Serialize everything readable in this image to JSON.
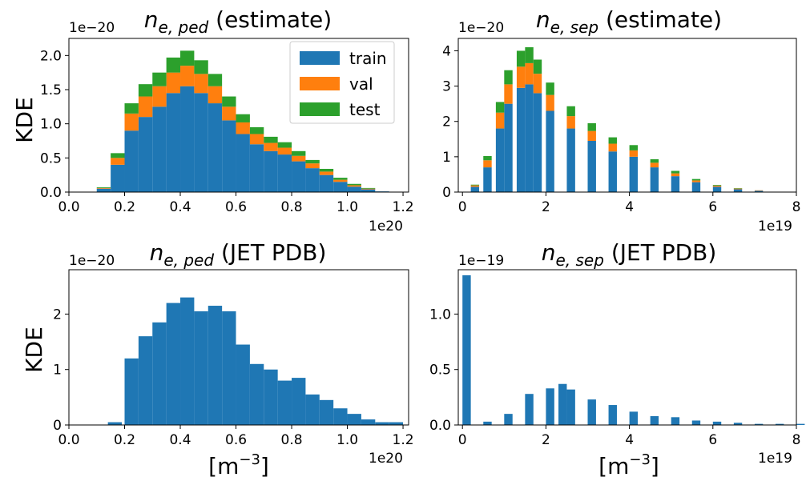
{
  "colors": {
    "train": "#1f77b4",
    "val": "#ff7f0e",
    "test": "#2ca02c"
  },
  "ylabel": "KDE",
  "xlabel": {
    "main": "[m",
    "sup": "−3",
    "close": "]"
  },
  "chart_data": [
    {
      "type": "bar",
      "stacked": true,
      "title": {
        "sym": "n",
        "sub": "e, ped",
        "suffix": " (estimate)"
      },
      "ylabel": "KDE",
      "x_offset": "1e20",
      "y_offset": "1e−20",
      "xlim": [
        0,
        1.22
      ],
      "ylim": [
        0,
        2.25
      ],
      "xticks": [
        0.0,
        0.2,
        0.4,
        0.6,
        0.8,
        1.0,
        1.2
      ],
      "xtick_labels": [
        "0.0",
        "0.2",
        "0.4",
        "0.6",
        "0.8",
        "1.0",
        "1.2"
      ],
      "yticks": [
        0.0,
        0.5,
        1.0,
        1.5,
        2.0
      ],
      "ytick_labels": [
        "0.0",
        "0.5",
        "1.0",
        "1.5",
        "2.0"
      ],
      "legend": {
        "position": "upper right",
        "entries": [
          "train",
          "val",
          "test"
        ]
      },
      "series": [
        {
          "name": "train",
          "x": [
            0.0,
            0.1,
            0.15,
            0.2,
            0.25,
            0.3,
            0.35,
            0.4,
            0.45,
            0.5,
            0.55,
            0.6,
            0.65,
            0.7,
            0.75,
            0.8,
            0.85,
            0.9,
            0.95,
            1.0,
            1.05,
            1.1,
            1.15
          ],
          "y": [
            0.0,
            0.05,
            0.4,
            0.9,
            1.1,
            1.25,
            1.45,
            1.55,
            1.45,
            1.3,
            1.05,
            0.85,
            0.7,
            0.6,
            0.55,
            0.45,
            0.35,
            0.25,
            0.15,
            0.08,
            0.04,
            0.01,
            0.0
          ]
        },
        {
          "name": "val",
          "x": [
            0.0,
            0.1,
            0.15,
            0.2,
            0.25,
            0.3,
            0.35,
            0.4,
            0.45,
            0.5,
            0.55,
            0.6,
            0.65,
            0.7,
            0.75,
            0.8,
            0.85,
            0.9,
            0.95,
            1.0,
            1.05,
            1.1,
            1.15
          ],
          "y": [
            0.0,
            0.01,
            0.1,
            0.25,
            0.3,
            0.3,
            0.3,
            0.3,
            0.28,
            0.25,
            0.2,
            0.17,
            0.15,
            0.12,
            0.1,
            0.08,
            0.07,
            0.05,
            0.03,
            0.02,
            0.01,
            0.0,
            0.0
          ]
        },
        {
          "name": "test",
          "x": [
            0.0,
            0.1,
            0.15,
            0.2,
            0.25,
            0.3,
            0.35,
            0.4,
            0.45,
            0.5,
            0.55,
            0.6,
            0.65,
            0.7,
            0.75,
            0.8,
            0.85,
            0.9,
            0.95,
            1.0,
            1.05,
            1.1,
            1.15
          ],
          "y": [
            0.0,
            0.01,
            0.07,
            0.15,
            0.18,
            0.2,
            0.22,
            0.22,
            0.2,
            0.18,
            0.15,
            0.12,
            0.1,
            0.09,
            0.08,
            0.07,
            0.05,
            0.04,
            0.03,
            0.02,
            0.01,
            0.0,
            0.0
          ]
        }
      ]
    },
    {
      "type": "bar",
      "stacked": true,
      "title": {
        "sym": "n",
        "sub": "e, sep",
        "suffix": " (estimate)"
      },
      "x_offset": "1e19",
      "y_offset": "1e−20",
      "xlim": [
        -0.1,
        8.0
      ],
      "ylim": [
        0,
        4.35
      ],
      "xticks": [
        0,
        2,
        4,
        6,
        8
      ],
      "xtick_labels": [
        "0",
        "2",
        "4",
        "6",
        "8"
      ],
      "yticks": [
        0,
        1,
        2,
        3,
        4
      ],
      "ytick_labels": [
        "0",
        "1",
        "2",
        "3",
        "4"
      ],
      "series": [
        {
          "name": "train",
          "x": [
            0.0,
            0.2,
            0.5,
            0.8,
            1.0,
            1.3,
            1.5,
            1.7,
            2.0,
            2.5,
            3.0,
            3.5,
            4.0,
            4.5,
            5.0,
            5.5,
            6.0,
            6.5,
            7.0,
            7.5,
            7.8
          ],
          "y": [
            0.0,
            0.15,
            0.7,
            1.8,
            2.5,
            2.95,
            3.05,
            2.8,
            2.3,
            1.8,
            1.45,
            1.15,
            1.0,
            0.7,
            0.45,
            0.28,
            0.15,
            0.08,
            0.04,
            0.01,
            0.0
          ]
        },
        {
          "name": "val",
          "x": [
            0.0,
            0.2,
            0.5,
            0.8,
            1.0,
            1.3,
            1.5,
            1.7,
            2.0,
            2.5,
            3.0,
            3.5,
            4.0,
            4.5,
            5.0,
            5.5,
            6.0,
            6.5,
            7.0,
            7.5,
            7.8
          ],
          "y": [
            0.0,
            0.04,
            0.2,
            0.45,
            0.55,
            0.6,
            0.6,
            0.55,
            0.45,
            0.35,
            0.28,
            0.22,
            0.18,
            0.13,
            0.08,
            0.05,
            0.03,
            0.02,
            0.01,
            0.0,
            0.0
          ]
        },
        {
          "name": "test",
          "x": [
            0.0,
            0.2,
            0.5,
            0.8,
            1.0,
            1.3,
            1.5,
            1.7,
            2.0,
            2.5,
            3.0,
            3.5,
            4.0,
            4.5,
            5.0,
            5.5,
            6.0,
            6.5,
            7.0,
            7.5,
            7.8
          ],
          "y": [
            0.0,
            0.02,
            0.12,
            0.3,
            0.4,
            0.45,
            0.45,
            0.4,
            0.35,
            0.28,
            0.22,
            0.18,
            0.15,
            0.1,
            0.07,
            0.04,
            0.02,
            0.01,
            0.0,
            0.0,
            0.0
          ]
        }
      ]
    },
    {
      "type": "bar",
      "title": {
        "sym": "n",
        "sub": "e, ped",
        "suffix": " (JET PDB)"
      },
      "x_offset": "1e20",
      "y_offset": "1e−20",
      "xlim": [
        0,
        1.22
      ],
      "ylim": [
        0,
        2.8
      ],
      "xticks": [
        0.0,
        0.2,
        0.4,
        0.6,
        0.8,
        1.0,
        1.2
      ],
      "xtick_labels": [
        "0.0",
        "0.2",
        "0.4",
        "0.6",
        "0.8",
        "1.0",
        "1.2"
      ],
      "yticks": [
        0,
        1,
        2
      ],
      "ytick_labels": [
        "0",
        "1",
        "2"
      ],
      "series": [
        {
          "name": "train",
          "x": [
            0.14,
            0.2,
            0.25,
            0.3,
            0.35,
            0.4,
            0.45,
            0.5,
            0.55,
            0.6,
            0.65,
            0.7,
            0.75,
            0.8,
            0.85,
            0.9,
            0.95,
            1.0,
            1.05,
            1.1,
            1.15
          ],
          "y": [
            0.05,
            1.2,
            1.6,
            1.85,
            2.2,
            2.3,
            2.05,
            2.15,
            2.05,
            1.45,
            1.1,
            1.0,
            0.8,
            0.85,
            0.55,
            0.45,
            0.3,
            0.2,
            0.1,
            0.05,
            0.05
          ]
        }
      ]
    },
    {
      "type": "bar",
      "title": {
        "sym": "n",
        "sub": "e, sep",
        "suffix": " (JET PDB)"
      },
      "x_offset": "1e19",
      "y_offset": "1e−19",
      "xlim": [
        -0.1,
        8.0
      ],
      "ylim": [
        0,
        1.4
      ],
      "xticks": [
        0,
        2,
        4,
        6,
        8
      ],
      "xtick_labels": [
        "0",
        "2",
        "4",
        "6",
        "8"
      ],
      "yticks": [
        0.0,
        0.5,
        1.0
      ],
      "ytick_labels": [
        "0.0",
        "0.5",
        "1.0"
      ],
      "series": [
        {
          "name": "train",
          "x": [
            0.0,
            0.5,
            1.0,
            1.5,
            2.0,
            2.3,
            2.5,
            3.0,
            3.5,
            4.0,
            4.5,
            5.0,
            5.5,
            6.0,
            6.5,
            7.0,
            7.5,
            8.0
          ],
          "y": [
            1.35,
            0.03,
            0.1,
            0.28,
            0.33,
            0.37,
            0.32,
            0.23,
            0.18,
            0.12,
            0.08,
            0.07,
            0.04,
            0.03,
            0.02,
            0.01,
            0.01,
            0.01
          ]
        }
      ]
    }
  ]
}
